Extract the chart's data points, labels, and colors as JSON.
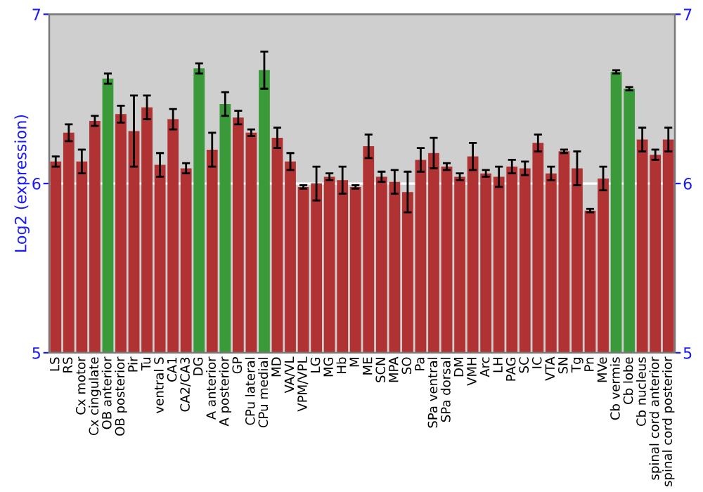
{
  "chart_data": {
    "type": "bar",
    "ylabel": "Log2 (expression)",
    "categories": [
      "LS",
      "RS",
      "Cx motor",
      "Cx cingulate",
      "OB anterior",
      "OB posterior",
      "Pir",
      "Tu",
      "ventral S",
      "CA1",
      "CA2/CA3",
      "DG",
      "A anterior",
      "A posterior",
      "GP",
      "CPu lateral",
      "CPu medial",
      "MD",
      "VA/VL",
      "VPM/VPL",
      "LG",
      "MG",
      "Hb",
      "M",
      "ME",
      "SCN",
      "MPA",
      "SO",
      "Pa",
      "SPa ventral",
      "SPa dorsal",
      "DM",
      "VMH",
      "Arc",
      "LH",
      "PAG",
      "SC",
      "IC",
      "VTA",
      "SN",
      "Tg",
      "Pn",
      "MVe",
      "Cb vermis",
      "Cb lobe",
      "Cb nucleus",
      "spinal cord anterior",
      "spinal cord posterior"
    ],
    "values": [
      6.13,
      6.3,
      6.13,
      6.37,
      6.62,
      6.41,
      6.31,
      6.45,
      6.11,
      6.38,
      6.09,
      6.68,
      6.2,
      6.47,
      6.39,
      6.3,
      6.67,
      6.27,
      6.13,
      5.98,
      6.0,
      6.04,
      6.02,
      5.98,
      6.22,
      6.04,
      6.01,
      5.95,
      6.14,
      6.18,
      6.1,
      6.04,
      6.16,
      6.06,
      6.04,
      6.1,
      6.09,
      6.24,
      6.06,
      6.19,
      6.09,
      5.84,
      6.03,
      6.66,
      6.56,
      6.26,
      6.17,
      6.26
    ],
    "errors": [
      0.03,
      0.05,
      0.07,
      0.03,
      0.03,
      0.05,
      0.21,
      0.07,
      0.07,
      0.06,
      0.03,
      0.03,
      0.1,
      0.07,
      0.04,
      0.02,
      0.11,
      0.06,
      0.05,
      0.01,
      0.1,
      0.02,
      0.08,
      0.01,
      0.07,
      0.03,
      0.07,
      0.12,
      0.07,
      0.09,
      0.02,
      0.02,
      0.08,
      0.02,
      0.06,
      0.04,
      0.04,
      0.05,
      0.04,
      0.01,
      0.1,
      0.01,
      0.07,
      0.01,
      0.01,
      0.07,
      0.03,
      0.07
    ],
    "colors": [
      "#b03232",
      "#b03232",
      "#b03232",
      "#b03232",
      "#3a9a3a",
      "#b03232",
      "#b03232",
      "#b03232",
      "#b03232",
      "#b03232",
      "#b03232",
      "#3a9a3a",
      "#b03232",
      "#3a9a3a",
      "#b03232",
      "#b03232",
      "#3a9a3a",
      "#b03232",
      "#b03232",
      "#b03232",
      "#b03232",
      "#b03232",
      "#b03232",
      "#b03232",
      "#b03232",
      "#b03232",
      "#b03232",
      "#b03232",
      "#b03232",
      "#b03232",
      "#b03232",
      "#b03232",
      "#b03232",
      "#b03232",
      "#b03232",
      "#b03232",
      "#b03232",
      "#b03232",
      "#b03232",
      "#b03232",
      "#b03232",
      "#b03232",
      "#b03232",
      "#3a9a3a",
      "#3a9a3a",
      "#b03232",
      "#b03232",
      "#b03232"
    ],
    "ylim": [
      5,
      7
    ],
    "yticks": [
      5,
      6,
      7
    ],
    "y2lim": [
      5,
      7
    ],
    "y2ticks": [
      5,
      6,
      7
    ],
    "grid": "y",
    "legend": false
  }
}
